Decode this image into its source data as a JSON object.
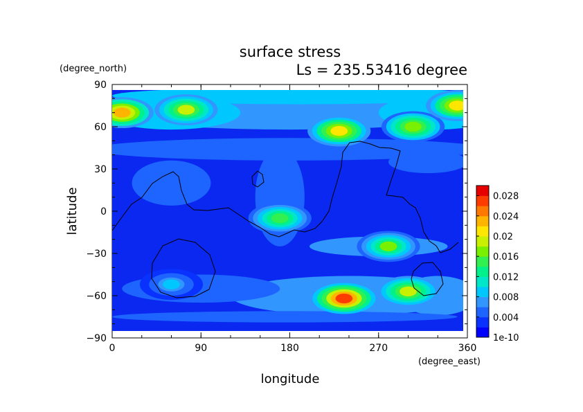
{
  "chart_data": {
    "type": "heatmap",
    "title": "surface stress",
    "subtitle": "Ls = 235.53416 degree",
    "xlabel": "longitude",
    "ylabel": "latitude",
    "xunit": "(degree_east)",
    "yunit": "(degree_north)",
    "xlim": [
      0,
      360
    ],
    "ylim": [
      -90,
      90
    ],
    "xticks": [
      "0",
      "90",
      "180",
      "270",
      "360"
    ],
    "yticks": [
      "90",
      "60",
      "30",
      "0",
      "−30",
      "−60",
      "−90"
    ],
    "colorbar": {
      "labels": [
        "1e-10",
        "0.004",
        "0.008",
        "0.012",
        "0.016",
        "0.02",
        "0.024",
        "0.028"
      ],
      "range": [
        0,
        0.03
      ],
      "colors": [
        "#0000ff",
        "#0a32ff",
        "#1e64ff",
        "#3296ff",
        "#00c8ff",
        "#00e6c8",
        "#00f08c",
        "#32f050",
        "#78f000",
        "#c8f000",
        "#ffe600",
        "#ffb400",
        "#ff7800",
        "#ff3c00",
        "#e60000"
      ]
    },
    "hotspots": [
      {
        "lon": 10,
        "lat": 70,
        "value": 0.022
      },
      {
        "lon": 75,
        "lat": 72,
        "value": 0.018
      },
      {
        "lon": 230,
        "lat": 57,
        "value": 0.02
      },
      {
        "lon": 305,
        "lat": 60,
        "value": 0.017
      },
      {
        "lon": 350,
        "lat": 75,
        "value": 0.02
      },
      {
        "lon": 170,
        "lat": -5,
        "value": 0.014
      },
      {
        "lon": 235,
        "lat": -62,
        "value": 0.026
      },
      {
        "lon": 300,
        "lat": -57,
        "value": 0.018
      },
      {
        "lon": 280,
        "lat": -25,
        "value": 0.016
      },
      {
        "lon": 60,
        "lat": -52,
        "value": 0.008
      }
    ]
  }
}
